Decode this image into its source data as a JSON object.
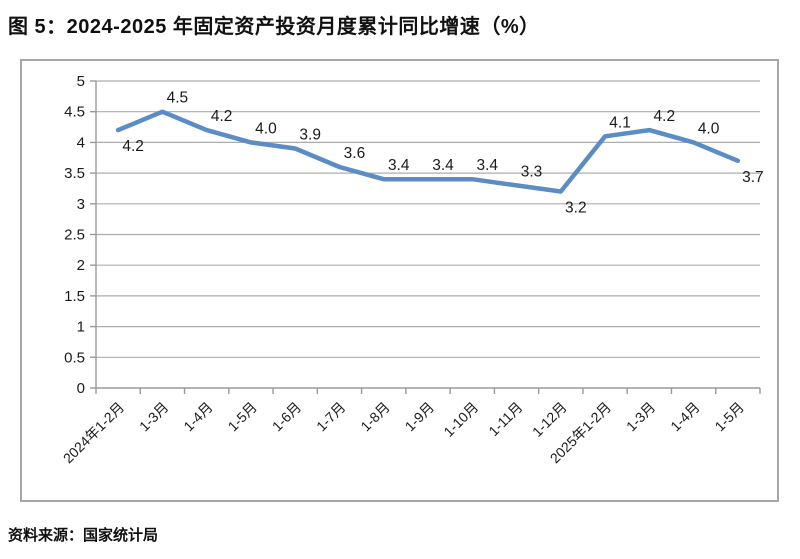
{
  "title": "图 5：2024-2025 年固定资产投资月度累计同比增速（%）",
  "source": "资料来源：国家统计局",
  "chart_data": {
    "type": "line",
    "title": "2024-2025 年固定资产投资月度累计同比增速（%）",
    "categories": [
      "2024年1-2月",
      "1-3月",
      "1-4月",
      "1-5月",
      "1-6月",
      "1-7月",
      "1-8月",
      "1-9月",
      "1-10月",
      "1-11月",
      "1-12月",
      "2025年1-2月",
      "1-3月",
      "1-4月",
      "1-5月"
    ],
    "values": [
      4.2,
      4.5,
      4.2,
      4.0,
      3.9,
      3.6,
      3.4,
      3.4,
      3.4,
      3.3,
      3.2,
      4.1,
      4.2,
      4.0,
      3.7
    ],
    "point_labels": [
      "4.2",
      "4.5",
      "4.2",
      "4.0",
      "3.9",
      "3.6",
      "3.4",
      "3.4",
      "3.4",
      "3.3",
      "3.2",
      "4.1",
      "4.2",
      "4.0",
      "3.7"
    ],
    "label_position": [
      "below",
      "above",
      "above",
      "above",
      "above",
      "above",
      "above",
      "above",
      "above",
      "above",
      "below",
      "above",
      "above",
      "above",
      "below"
    ],
    "xlabel": "",
    "ylabel": "",
    "ylim": [
      0,
      5
    ],
    "ytick_step": 0.5,
    "ytick_labels": [
      "0",
      "0.5",
      "1",
      "1.5",
      "2",
      "2.5",
      "3",
      "3.5",
      "4",
      "4.5",
      "5"
    ],
    "grid": true,
    "legend_position": "none",
    "xtick_rotation": -45,
    "colors": {
      "line": "#5b8dc4",
      "grid": "#adadad",
      "axis": "#9a9a9a",
      "text": "#1a1a1a",
      "border": "#a6a6a6"
    }
  }
}
